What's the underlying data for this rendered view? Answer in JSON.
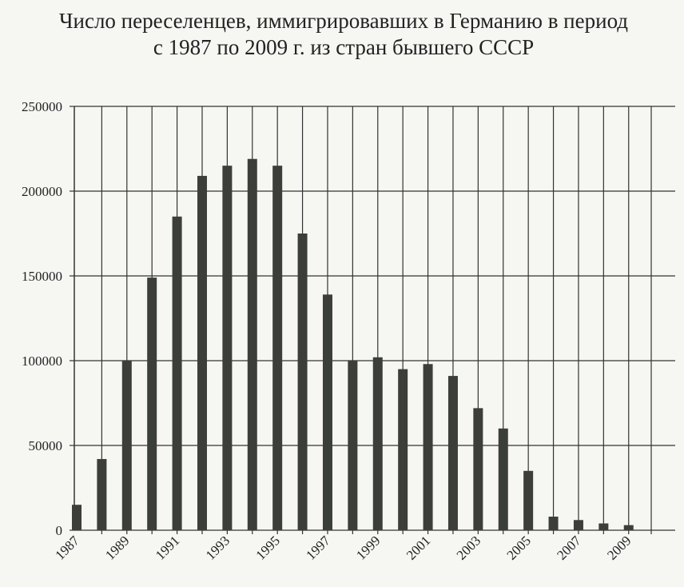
{
  "chart_data": {
    "type": "bar",
    "title": [
      "Число переселенцев, иммигрировавших в Германию в период",
      "с 1987 по 2009 г. из стран бывшего СССР"
    ],
    "categories": [
      "1987",
      null,
      "1989",
      null,
      "1991",
      null,
      "1993",
      null,
      "1995",
      null,
      "1997",
      null,
      "1999",
      null,
      "2001",
      null,
      "2003",
      null,
      "2005",
      null,
      "2007",
      null,
      "2009"
    ],
    "values": [
      15000,
      42000,
      100000,
      149000,
      185000,
      209000,
      215000,
      219000,
      215000,
      175000,
      139000,
      100000,
      102000,
      95000,
      98000,
      91000,
      72000,
      60000,
      35000,
      8000,
      6000,
      4000,
      3000
    ],
    "color": "#3b3e39",
    "ylim": [
      0,
      250000
    ],
    "yticks": [
      0,
      50000,
      100000,
      150000,
      200000,
      250000
    ],
    "grid": true
  }
}
